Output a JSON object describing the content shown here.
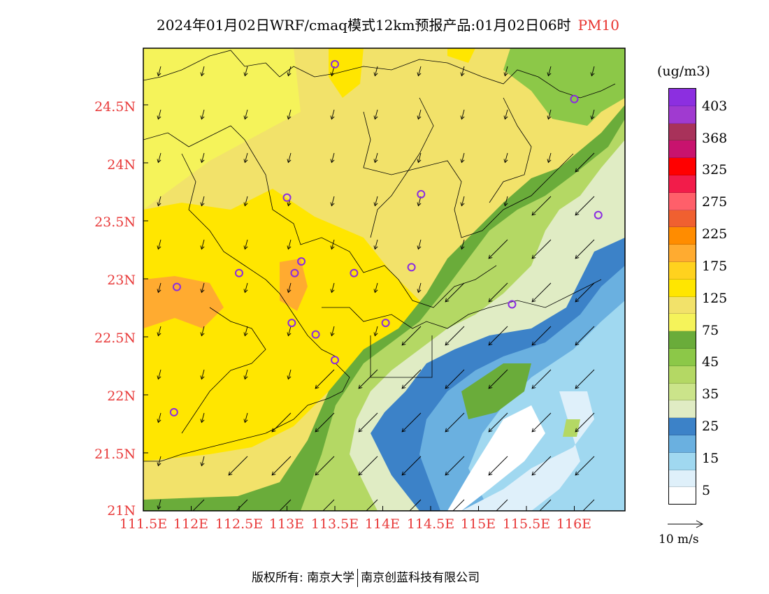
{
  "title": {
    "main": "2024年01月02日WRF/cmaq模式12km预报产品:01月02日06时",
    "pollutant": "PM10"
  },
  "axes": {
    "y_ticks": [
      "24.5N",
      "24N",
      "23.5N",
      "23N",
      "22.5N",
      "22N",
      "21.5N",
      "21N"
    ],
    "x_ticks": [
      "111.5E",
      "112E",
      "112.5E",
      "113E",
      "113.5E",
      "114E",
      "114.5E",
      "115E",
      "115.5E",
      "116E"
    ]
  },
  "legend": {
    "unit": "(ug/m3)",
    "labels": [
      "403",
      "368",
      "325",
      "275",
      "225",
      "175",
      "125",
      "75",
      "45",
      "35",
      "25",
      "15",
      "5"
    ],
    "colors": [
      "#8c2fe0",
      "#a03ad0",
      "#a8325a",
      "#c8136e",
      "#ff0000",
      "#f21c4a",
      "#ff5f6a",
      "#f06030",
      "#ff8c00",
      "#ffab30",
      "#ffd21e",
      "#ffe600",
      "#f2e26a",
      "#f5f35a",
      "#6aac3a",
      "#8cc848",
      "#b4d864",
      "#cbe48a",
      "#e0ecc4",
      "#3c82c8",
      "#6ab0e0",
      "#a0d8f0",
      "#dff0fa",
      "#ffffff"
    ]
  },
  "wind_reference": "10 m/s",
  "footer": {
    "left": "版权所有: 南京大学",
    "right": "南京创蓝科技有限公司"
  },
  "stations": [
    {
      "lon": 113.5,
      "lat": 24.85
    },
    {
      "lon": 116.0,
      "lat": 24.55
    },
    {
      "lon": 113.0,
      "lat": 23.7
    },
    {
      "lon": 114.4,
      "lat": 23.73
    },
    {
      "lon": 116.25,
      "lat": 23.55
    },
    {
      "lon": 113.15,
      "lat": 23.15
    },
    {
      "lon": 112.5,
      "lat": 23.05
    },
    {
      "lon": 113.08,
      "lat": 23.05
    },
    {
      "lon": 113.7,
      "lat": 23.05
    },
    {
      "lon": 114.3,
      "lat": 23.1
    },
    {
      "lon": 111.85,
      "lat": 22.93
    },
    {
      "lon": 115.35,
      "lat": 22.78
    },
    {
      "lon": 113.05,
      "lat": 22.62
    },
    {
      "lon": 114.03,
      "lat": 22.62
    },
    {
      "lon": 113.3,
      "lat": 22.52
    },
    {
      "lon": 113.5,
      "lat": 22.3
    },
    {
      "lon": 111.82,
      "lat": 21.85
    }
  ]
}
